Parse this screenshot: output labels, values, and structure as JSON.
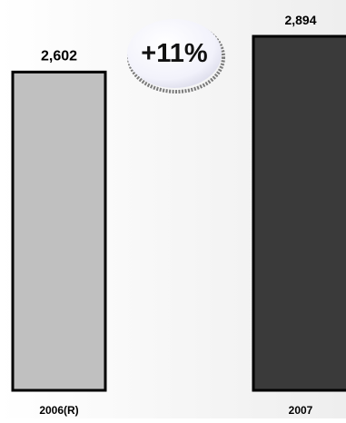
{
  "chart_data": {
    "type": "bar",
    "title": "",
    "xlabel": "",
    "ylabel": "",
    "categories": [
      "2006(R)",
      "2007"
    ],
    "values": [
      2602,
      2894
    ],
    "value_labels": [
      "2,602",
      "2,894"
    ],
    "ylim": [
      0,
      2894
    ],
    "grid": false,
    "bar_colors": [
      "#c0c0c0",
      "#3a3a3a"
    ],
    "bar_outline": "#000000",
    "annotation": {
      "text": "+11%",
      "shape": "bubble"
    }
  }
}
